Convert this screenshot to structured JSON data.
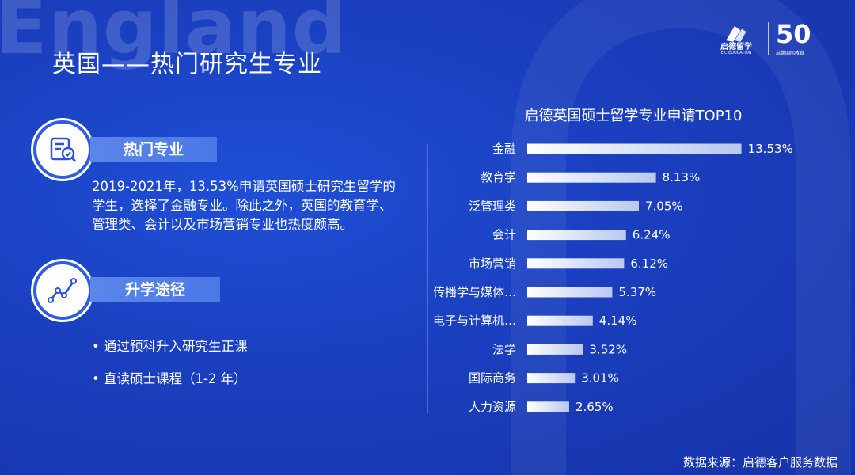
{
  "background_word": "England",
  "page_title": "英国——热门研究生专业",
  "logo": {
    "name": "启德留学",
    "sub": "EIC EDUCATION",
    "fifty": "50",
    "fifty_sub": "启德国际教育"
  },
  "section1": {
    "label": "热门专业",
    "text": "2019-2021年，13.53%申请英国硕士研究生留学的学生，选择了金融专业。除此之外，英国的教育学、管理类、会计以及市场营销专业也热度颇高。"
  },
  "section2": {
    "label": "升学途径",
    "bullets": [
      "通过预科升入研究生正课",
      "直读硕士课程（1-2 年）"
    ]
  },
  "source": "数据来源：启德客户服务数据",
  "colors": {
    "bg": "#1a3fbf",
    "accent": "#4a78e6",
    "bar_start": "#ffffff",
    "bar_end": "#b9c8ee"
  },
  "chart_data": {
    "type": "bar",
    "orientation": "horizontal",
    "title": "启德英国硕士留学专业申请TOP10",
    "categories": [
      "金融",
      "教育学",
      "泛管理类",
      "会计",
      "市场营销",
      "传播学与媒体…",
      "电子与计算机…",
      "法学",
      "国际商务",
      "人力资源"
    ],
    "values": [
      13.53,
      8.13,
      7.05,
      6.24,
      6.12,
      5.37,
      4.14,
      3.52,
      3.01,
      2.65
    ],
    "value_labels": [
      "13.53%",
      "8.13%",
      "7.05%",
      "6.24%",
      "6.12%",
      "5.37%",
      "4.14%",
      "3.52%",
      "3.01%",
      "2.65%"
    ],
    "xlabel": "",
    "ylabel": "",
    "xlim": [
      0,
      16
    ],
    "grid": false
  }
}
